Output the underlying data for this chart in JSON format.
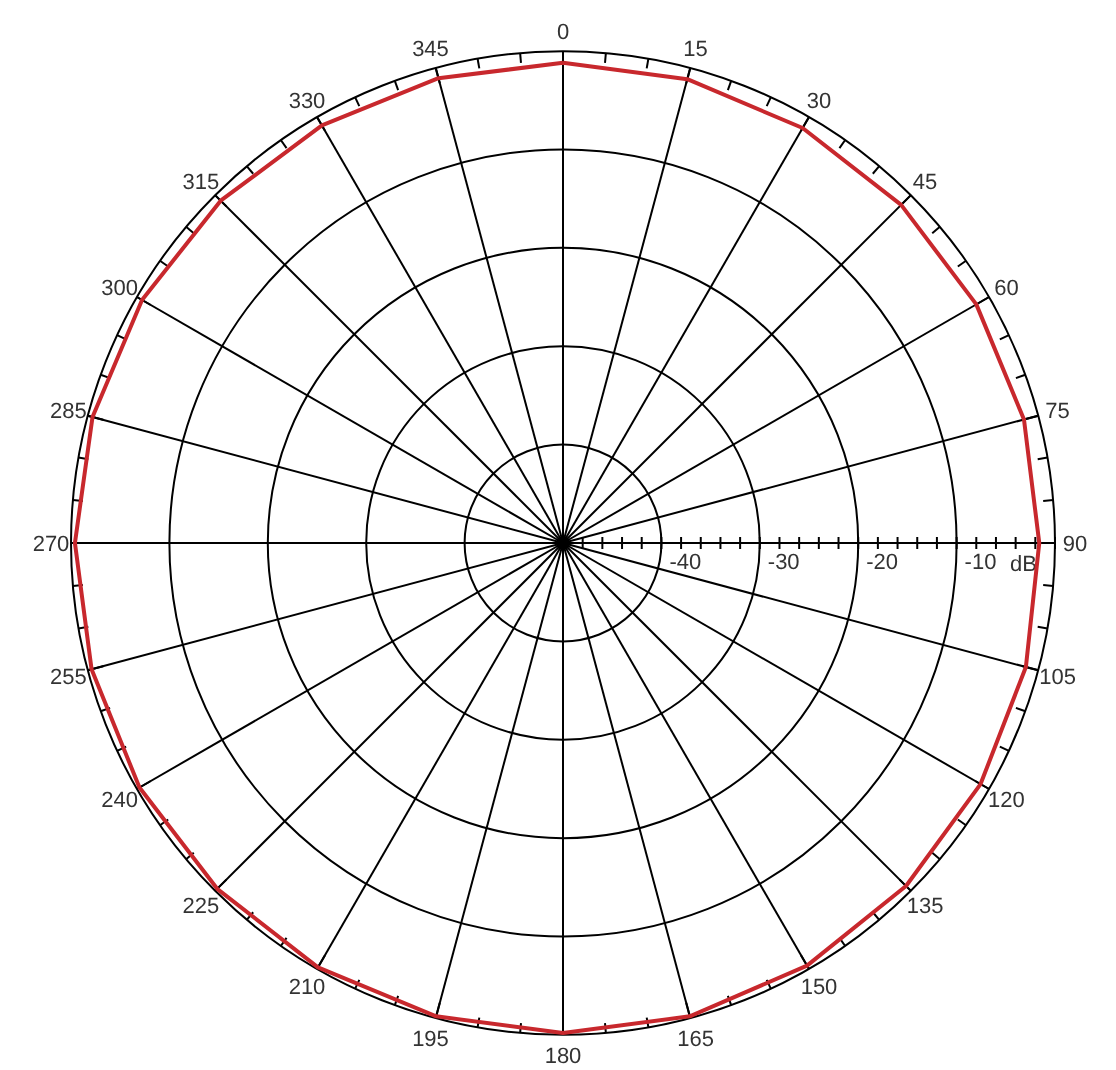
{
  "chart_data": {
    "type": "radar",
    "categories": [
      "0",
      "15",
      "30",
      "45",
      "60",
      "75",
      "90",
      "105",
      "120",
      "135",
      "150",
      "165",
      "180",
      "195",
      "210",
      "225",
      "240",
      "255",
      "270",
      "285",
      "300",
      "315",
      "330",
      "345"
    ],
    "series": [
      {
        "color": "#c8282d",
        "values": [
          -1.2,
          -1.2,
          -1.3,
          -1.4,
          -1.5,
          -1.5,
          -1.6,
          -1.3,
          -1.0,
          -0.7,
          -0.4,
          -0.2,
          -0.2,
          -0.2,
          -0.2,
          -0.3,
          -0.3,
          -0.4,
          -0.4,
          -0.5,
          -0.6,
          -0.8,
          -1.0,
          -1.1
        ]
      }
    ],
    "ylim": [
      -50,
      0
    ],
    "yticks": [
      -40,
      -30,
      -20,
      -10,
      {
        "value": 0,
        "label": "dB"
      }
    ],
    "grid": true,
    "marker": "none",
    "line_style": "solid"
  }
}
